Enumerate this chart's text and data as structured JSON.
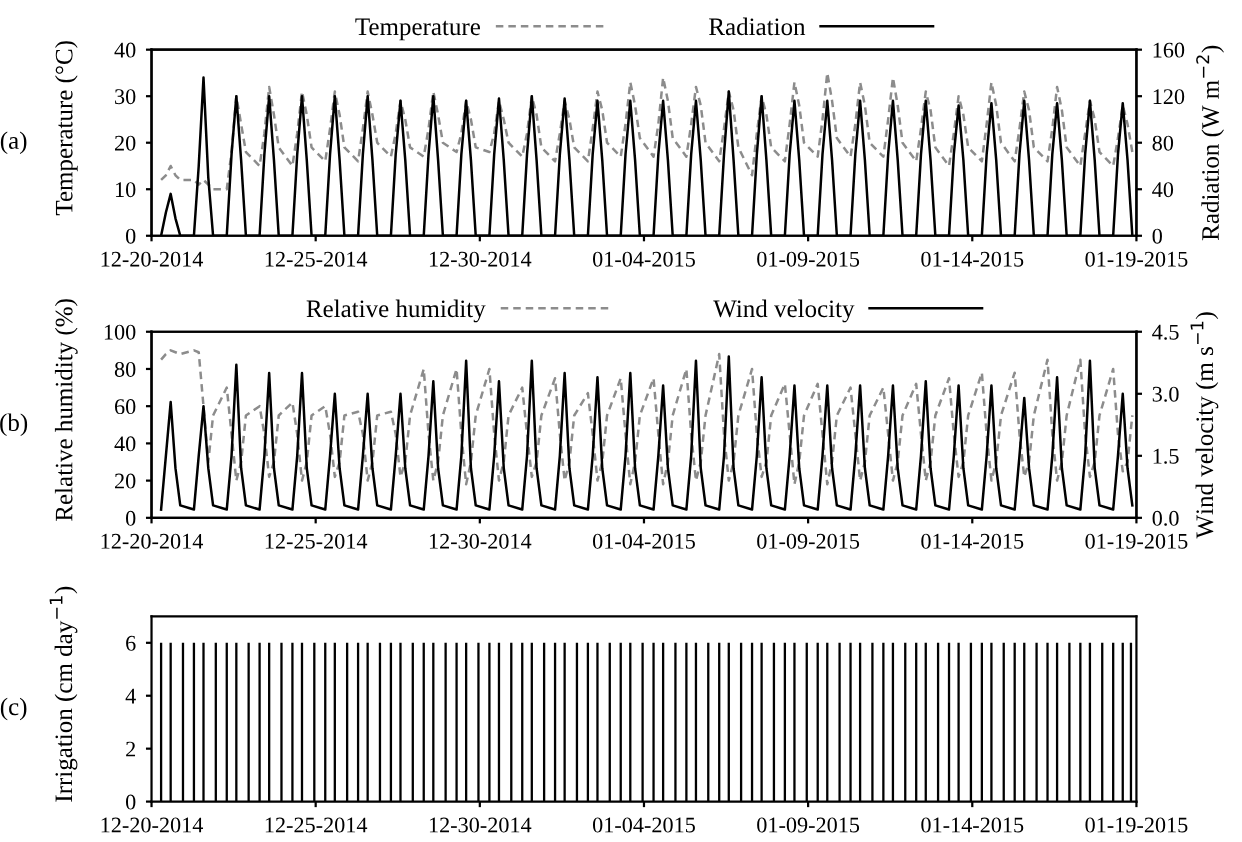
{
  "chart_data": [
    {
      "type": "line",
      "ylabel": "Temperature (°C)",
      "y2label": "Radiation (W m$^{−2}$)",
      "annotations": [
        "(a)"
      ],
      "legend": "top",
      "grid": false,
      "marker": "none",
      "xlim": [
        "2014-12-20",
        "2015-01-19"
      ],
      "xticks": [
        {
          "value": "2014-12-20",
          "label": "12-20-2014"
        },
        {
          "value": "2014-12-25",
          "label": "12-25-2014"
        },
        {
          "value": "2014-12-30",
          "label": "12-30-2014"
        },
        {
          "value": "2015-01-04",
          "label": "01-04-2015"
        },
        {
          "value": "2015-01-09",
          "label": "01-09-2015"
        },
        {
          "value": "2015-01-14",
          "label": "01-14-2015"
        },
        {
          "value": "2015-01-19",
          "label": "01-19-2015"
        }
      ],
      "ylim": [
        0,
        40
      ],
      "yticks": [
        0,
        10,
        20,
        30,
        40
      ],
      "y2lim": [
        0,
        160
      ],
      "y2ticks": [
        0,
        40,
        80,
        120,
        160
      ],
      "x": [
        "2014-12-20T07:00",
        "2014-12-20T10:30",
        "2014-12-20T14:00",
        "2014-12-20T17:30",
        "2014-12-20T21:00",
        "2014-12-21T07:00",
        "2014-12-21T10:30",
        "2014-12-21T14:00",
        "2014-12-21T17:30",
        "2014-12-21T21:00",
        "2014-12-22T07:00",
        "2014-12-22T10:30",
        "2014-12-22T14:00",
        "2014-12-22T17:30",
        "2014-12-22T21:00",
        "2014-12-23T07:00",
        "2014-12-23T10:30",
        "2014-12-23T14:00",
        "2014-12-23T17:30",
        "2014-12-23T21:00",
        "2014-12-24T07:00",
        "2014-12-24T10:30",
        "2014-12-24T14:00",
        "2014-12-24T17:30",
        "2014-12-24T21:00",
        "2014-12-25T07:00",
        "2014-12-25T10:30",
        "2014-12-25T14:00",
        "2014-12-25T17:30",
        "2014-12-25T21:00",
        "2014-12-26T07:00",
        "2014-12-26T10:30",
        "2014-12-26T14:00",
        "2014-12-26T17:30",
        "2014-12-26T21:00",
        "2014-12-27T07:00",
        "2014-12-27T10:30",
        "2014-12-27T14:00",
        "2014-12-27T17:30",
        "2014-12-27T21:00",
        "2014-12-28T07:00",
        "2014-12-28T10:30",
        "2014-12-28T14:00",
        "2014-12-28T17:30",
        "2014-12-28T21:00",
        "2014-12-29T07:00",
        "2014-12-29T10:30",
        "2014-12-29T14:00",
        "2014-12-29T17:30",
        "2014-12-29T21:00",
        "2014-12-30T07:00",
        "2014-12-30T10:30",
        "2014-12-30T14:00",
        "2014-12-30T17:30",
        "2014-12-30T21:00",
        "2014-12-31T07:00",
        "2014-12-31T10:30",
        "2014-12-31T14:00",
        "2014-12-31T17:30",
        "2014-12-31T21:00",
        "2015-01-01T07:00",
        "2015-01-01T10:30",
        "2015-01-01T14:00",
        "2015-01-01T17:30",
        "2015-01-01T21:00",
        "2015-01-02T07:00",
        "2015-01-02T10:30",
        "2015-01-02T14:00",
        "2015-01-02T17:30",
        "2015-01-02T21:00",
        "2015-01-03T07:00",
        "2015-01-03T10:30",
        "2015-01-03T14:00",
        "2015-01-03T17:30",
        "2015-01-03T21:00",
        "2015-01-04T07:00",
        "2015-01-04T10:30",
        "2015-01-04T14:00",
        "2015-01-04T17:30",
        "2015-01-04T21:00",
        "2015-01-05T07:00",
        "2015-01-05T10:30",
        "2015-01-05T14:00",
        "2015-01-05T17:30",
        "2015-01-05T21:00",
        "2015-01-06T07:00",
        "2015-01-06T10:30",
        "2015-01-06T14:00",
        "2015-01-06T17:30",
        "2015-01-06T21:00",
        "2015-01-07T07:00",
        "2015-01-07T10:30",
        "2015-01-07T14:00",
        "2015-01-07T17:30",
        "2015-01-07T21:00",
        "2015-01-08T07:00",
        "2015-01-08T10:30",
        "2015-01-08T14:00",
        "2015-01-08T17:30",
        "2015-01-08T21:00",
        "2015-01-09T07:00",
        "2015-01-09T10:30",
        "2015-01-09T14:00",
        "2015-01-09T17:30",
        "2015-01-09T21:00",
        "2015-01-10T07:00",
        "2015-01-10T10:30",
        "2015-01-10T14:00",
        "2015-01-10T17:30",
        "2015-01-10T21:00",
        "2015-01-11T07:00",
        "2015-01-11T10:30",
        "2015-01-11T14:00",
        "2015-01-11T17:30",
        "2015-01-11T21:00",
        "2015-01-12T07:00",
        "2015-01-12T10:30",
        "2015-01-12T14:00",
        "2015-01-12T17:30",
        "2015-01-12T21:00",
        "2015-01-13T07:00",
        "2015-01-13T10:30",
        "2015-01-13T14:00",
        "2015-01-13T17:30",
        "2015-01-13T21:00",
        "2015-01-14T07:00",
        "2015-01-14T10:30",
        "2015-01-14T14:00",
        "2015-01-14T17:30",
        "2015-01-14T21:00",
        "2015-01-15T07:00",
        "2015-01-15T10:30",
        "2015-01-15T14:00",
        "2015-01-15T17:30",
        "2015-01-15T21:00",
        "2015-01-16T07:00",
        "2015-01-16T10:30",
        "2015-01-16T14:00",
        "2015-01-16T17:30",
        "2015-01-16T21:00",
        "2015-01-17T07:00",
        "2015-01-17T10:30",
        "2015-01-17T14:00",
        "2015-01-17T17:30",
        "2015-01-17T21:00",
        "2015-01-18T07:00",
        "2015-01-18T10:30",
        "2015-01-18T14:00",
        "2015-01-18T17:30",
        "2015-01-18T21:00"
      ],
      "series": [
        {
          "name": "Temperature",
          "color": "#8c8c8c",
          "line_style": "dashed",
          "values": [
            12,
            13,
            15,
            13,
            12,
            12,
            11,
            12,
            11,
            10,
            10,
            18,
            30,
            24,
            18,
            15,
            22,
            32,
            26,
            19,
            15,
            22,
            31,
            26,
            19,
            16,
            23,
            31,
            26,
            19,
            16,
            23,
            31,
            26,
            20,
            17,
            22,
            29,
            25,
            19,
            17,
            23,
            31,
            26,
            20,
            18,
            22,
            29,
            25,
            19,
            18,
            22,
            29,
            25,
            20,
            17,
            22,
            30,
            26,
            19,
            16,
            22,
            29,
            25,
            19,
            16,
            23,
            31,
            27,
            20,
            17,
            24,
            33,
            28,
            21,
            17,
            24,
            34,
            29,
            21,
            17,
            24,
            32,
            28,
            20,
            16,
            23,
            31,
            27,
            19,
            13,
            22,
            30,
            26,
            19,
            16,
            24,
            33,
            28,
            20,
            17,
            25,
            35,
            29,
            21,
            17,
            24,
            33,
            28,
            20,
            17,
            25,
            34,
            28,
            20,
            16,
            23,
            31,
            27,
            19,
            15,
            22,
            30,
            26,
            19,
            16,
            24,
            33,
            28,
            20,
            16,
            23,
            31,
            27,
            19,
            16,
            23,
            32,
            27,
            19,
            15,
            22,
            29,
            25,
            18,
            15,
            21,
            28,
            24,
            18
          ]
        },
        {
          "name": "Radiation",
          "color": "#000000",
          "line_style": "solid",
          "axis": "y2",
          "values": [
            0,
            20,
            36,
            15,
            0,
            0,
            60,
            136,
            50,
            0,
            0,
            70,
            120,
            65,
            0,
            0,
            70,
            120,
            65,
            0,
            0,
            70,
            120,
            65,
            0,
            0,
            70,
            120,
            65,
            0,
            0,
            70,
            120,
            65,
            0,
            0,
            70,
            116,
            65,
            0,
            0,
            70,
            120,
            65,
            0,
            0,
            70,
            116,
            65,
            0,
            0,
            70,
            118,
            65,
            0,
            0,
            70,
            120,
            65,
            0,
            0,
            70,
            118,
            65,
            0,
            0,
            70,
            116,
            65,
            0,
            0,
            70,
            116,
            65,
            0,
            0,
            70,
            116,
            65,
            0,
            0,
            70,
            116,
            65,
            0,
            0,
            70,
            124,
            65,
            0,
            0,
            70,
            120,
            65,
            0,
            0,
            70,
            116,
            65,
            0,
            0,
            70,
            116,
            65,
            0,
            0,
            70,
            116,
            65,
            0,
            0,
            70,
            116,
            65,
            0,
            0,
            70,
            116,
            65,
            0,
            0,
            70,
            112,
            65,
            0,
            0,
            70,
            114,
            65,
            0,
            0,
            70,
            116,
            65,
            0,
            0,
            70,
            114,
            65,
            0,
            0,
            70,
            116,
            65,
            0,
            0,
            70,
            114,
            65,
            0
          ]
        }
      ]
    },
    {
      "type": "line",
      "ylabel": "Relative humidity (%)",
      "y2label": "Wind velocity (m s$^{−1}$)",
      "annotations": [
        "(b)"
      ],
      "legend": "top",
      "grid": false,
      "marker": "none",
      "xlim": [
        "2014-12-20",
        "2015-01-19"
      ],
      "xticks": [
        {
          "value": "2014-12-20",
          "label": "12-20-2014"
        },
        {
          "value": "2014-12-25",
          "label": "12-25-2014"
        },
        {
          "value": "2014-12-30",
          "label": "12-30-2014"
        },
        {
          "value": "2015-01-04",
          "label": "01-04-2015"
        },
        {
          "value": "2015-01-09",
          "label": "01-09-2015"
        },
        {
          "value": "2015-01-14",
          "label": "01-14-2015"
        },
        {
          "value": "2015-01-19",
          "label": "01-19-2015"
        }
      ],
      "ylim": [
        0,
        100
      ],
      "yticks": [
        0,
        20,
        40,
        60,
        80,
        100
      ],
      "y2lim": [
        0,
        4.5
      ],
      "y2ticks": [
        {
          "value": 0,
          "label": "0.0"
        },
        {
          "value": 1.5,
          "label": "1.5"
        },
        {
          "value": 3,
          "label": "3.0"
        },
        {
          "value": 4.5,
          "label": "4.5"
        }
      ],
      "x": [
        "2014-12-20T07:00",
        "2014-12-20T10:30",
        "2014-12-20T14:00",
        "2014-12-20T17:30",
        "2014-12-20T21:00",
        "2014-12-21T07:00",
        "2014-12-21T10:30",
        "2014-12-21T14:00",
        "2014-12-21T17:30",
        "2014-12-21T21:00",
        "2014-12-22T07:00",
        "2014-12-22T10:30",
        "2014-12-22T14:00",
        "2014-12-22T17:30",
        "2014-12-22T21:00",
        "2014-12-23T07:00",
        "2014-12-23T10:30",
        "2014-12-23T14:00",
        "2014-12-23T17:30",
        "2014-12-23T21:00",
        "2014-12-24T07:00",
        "2014-12-24T10:30",
        "2014-12-24T14:00",
        "2014-12-24T17:30",
        "2014-12-24T21:00",
        "2014-12-25T07:00",
        "2014-12-25T10:30",
        "2014-12-25T14:00",
        "2014-12-25T17:30",
        "2014-12-25T21:00",
        "2014-12-26T07:00",
        "2014-12-26T10:30",
        "2014-12-26T14:00",
        "2014-12-26T17:30",
        "2014-12-26T21:00",
        "2014-12-27T07:00",
        "2014-12-27T10:30",
        "2014-12-27T14:00",
        "2014-12-27T17:30",
        "2014-12-27T21:00",
        "2014-12-28T07:00",
        "2014-12-28T10:30",
        "2014-12-28T14:00",
        "2014-12-28T17:30",
        "2014-12-28T21:00",
        "2014-12-29T07:00",
        "2014-12-29T10:30",
        "2014-12-29T14:00",
        "2014-12-29T17:30",
        "2014-12-29T21:00",
        "2014-12-30T07:00",
        "2014-12-30T10:30",
        "2014-12-30T14:00",
        "2014-12-30T17:30",
        "2014-12-30T21:00",
        "2014-12-31T07:00",
        "2014-12-31T10:30",
        "2014-12-31T14:00",
        "2014-12-31T17:30",
        "2014-12-31T21:00",
        "2015-01-01T07:00",
        "2015-01-01T10:30",
        "2015-01-01T14:00",
        "2015-01-01T17:30",
        "2015-01-01T21:00",
        "2015-01-02T07:00",
        "2015-01-02T10:30",
        "2015-01-02T14:00",
        "2015-01-02T17:30",
        "2015-01-02T21:00",
        "2015-01-03T07:00",
        "2015-01-03T10:30",
        "2015-01-03T14:00",
        "2015-01-03T17:30",
        "2015-01-03T21:00",
        "2015-01-04T07:00",
        "2015-01-04T10:30",
        "2015-01-04T14:00",
        "2015-01-04T17:30",
        "2015-01-04T21:00",
        "2015-01-05T07:00",
        "2015-01-05T10:30",
        "2015-01-05T14:00",
        "2015-01-05T17:30",
        "2015-01-05T21:00",
        "2015-01-06T07:00",
        "2015-01-06T10:30",
        "2015-01-06T14:00",
        "2015-01-06T17:30",
        "2015-01-06T21:00",
        "2015-01-07T07:00",
        "2015-01-07T10:30",
        "2015-01-07T14:00",
        "2015-01-07T17:30",
        "2015-01-07T21:00",
        "2015-01-08T07:00",
        "2015-01-08T10:30",
        "2015-01-08T14:00",
        "2015-01-08T17:30",
        "2015-01-08T21:00",
        "2015-01-09T07:00",
        "2015-01-09T10:30",
        "2015-01-09T14:00",
        "2015-01-09T17:30",
        "2015-01-09T21:00",
        "2015-01-10T07:00",
        "2015-01-10T10:30",
        "2015-01-10T14:00",
        "2015-01-10T17:30",
        "2015-01-10T21:00",
        "2015-01-11T07:00",
        "2015-01-11T10:30",
        "2015-01-11T14:00",
        "2015-01-11T17:30",
        "2015-01-11T21:00",
        "2015-01-12T07:00",
        "2015-01-12T10:30",
        "2015-01-12T14:00",
        "2015-01-12T17:30",
        "2015-01-12T21:00",
        "2015-01-13T07:00",
        "2015-01-13T10:30",
        "2015-01-13T14:00",
        "2015-01-13T17:30",
        "2015-01-13T21:00",
        "2015-01-14T07:00",
        "2015-01-14T10:30",
        "2015-01-14T14:00",
        "2015-01-14T17:30",
        "2015-01-14T21:00",
        "2015-01-15T07:00",
        "2015-01-15T10:30",
        "2015-01-15T14:00",
        "2015-01-15T17:30",
        "2015-01-15T21:00",
        "2015-01-16T07:00",
        "2015-01-16T10:30",
        "2015-01-16T14:00",
        "2015-01-16T17:30",
        "2015-01-16T21:00",
        "2015-01-17T07:00",
        "2015-01-17T10:30",
        "2015-01-17T14:00",
        "2015-01-17T17:30",
        "2015-01-17T21:00",
        "2015-01-18T07:00",
        "2015-01-18T10:30",
        "2015-01-18T14:00",
        "2015-01-18T17:30",
        "2015-01-18T21:00"
      ],
      "series": [
        {
          "name": "Relative humidity",
          "color": "#8c8c8c",
          "line_style": "dashed",
          "values": [
            85,
            88,
            90,
            89,
            88,
            90,
            89,
            60,
            30,
            55,
            70,
            45,
            20,
            30,
            55,
            60,
            45,
            22,
            30,
            55,
            62,
            45,
            20,
            30,
            55,
            60,
            45,
            22,
            30,
            55,
            57,
            45,
            20,
            30,
            55,
            57,
            45,
            22,
            30,
            55,
            80,
            45,
            20,
            30,
            55,
            80,
            45,
            18,
            30,
            55,
            80,
            45,
            20,
            30,
            55,
            70,
            45,
            22,
            30,
            55,
            75,
            45,
            20,
            30,
            55,
            67,
            45,
            20,
            30,
            55,
            75,
            45,
            18,
            30,
            55,
            75,
            45,
            18,
            30,
            55,
            80,
            45,
            20,
            30,
            55,
            88,
            45,
            20,
            30,
            55,
            80,
            45,
            22,
            30,
            55,
            72,
            45,
            18,
            30,
            55,
            72,
            45,
            18,
            30,
            55,
            70,
            45,
            20,
            30,
            55,
            70,
            45,
            20,
            30,
            55,
            72,
            45,
            20,
            30,
            55,
            75,
            45,
            22,
            30,
            55,
            78,
            45,
            20,
            30,
            55,
            78,
            45,
            22,
            30,
            55,
            85,
            45,
            20,
            30,
            55,
            85,
            45,
            22,
            30,
            55,
            80,
            45,
            25,
            30,
            55
          ]
        },
        {
          "name": "Wind velocity",
          "color": "#000000",
          "line_style": "solid",
          "axis": "y2",
          "values": [
            0.2,
            1.5,
            2.8,
            1.2,
            0.3,
            0.2,
            1.5,
            2.7,
            1.2,
            0.3,
            0.2,
            1.5,
            3.7,
            1.2,
            0.3,
            0.2,
            1.5,
            3.5,
            1.2,
            0.3,
            0.2,
            1.5,
            3.5,
            1.2,
            0.3,
            0.2,
            1.5,
            3.0,
            1.2,
            0.3,
            0.2,
            1.5,
            3.0,
            1.2,
            0.3,
            0.2,
            1.5,
            3.0,
            1.2,
            0.3,
            0.2,
            1.5,
            3.3,
            1.2,
            0.3,
            0.2,
            1.5,
            3.8,
            1.2,
            0.3,
            0.2,
            1.5,
            3.3,
            1.2,
            0.3,
            0.2,
            1.5,
            3.8,
            1.2,
            0.3,
            0.2,
            1.5,
            3.5,
            1.2,
            0.3,
            0.2,
            1.5,
            3.4,
            1.2,
            0.3,
            0.2,
            1.5,
            3.5,
            1.2,
            0.3,
            0.2,
            1.5,
            3.2,
            1.2,
            0.3,
            0.2,
            1.5,
            3.8,
            1.2,
            0.3,
            0.2,
            1.5,
            3.9,
            1.2,
            0.3,
            0.2,
            1.5,
            3.4,
            1.2,
            0.3,
            0.2,
            1.5,
            3.2,
            1.2,
            0.3,
            0.2,
            1.5,
            3.2,
            1.2,
            0.3,
            0.2,
            1.5,
            3.2,
            1.2,
            0.3,
            0.2,
            1.5,
            3.2,
            1.2,
            0.3,
            0.2,
            1.5,
            3.3,
            1.2,
            0.3,
            0.2,
            1.5,
            3.2,
            1.2,
            0.3,
            0.2,
            1.5,
            3.2,
            1.2,
            0.3,
            0.2,
            1.5,
            2.9,
            1.2,
            0.3,
            0.2,
            1.5,
            3.4,
            1.2,
            0.3,
            0.2,
            1.5,
            3.8,
            1.2,
            0.3,
            0.2,
            1.5,
            3.0,
            1.2,
            0.3
          ]
        }
      ]
    },
    {
      "type": "bar",
      "ylabel": "Irrigation (cm day$^{−1}$)",
      "annotations": [
        "(c)"
      ],
      "grid": false,
      "xlim": [
        "2014-12-20",
        "2015-01-19"
      ],
      "xticks": [
        {
          "value": "2014-12-20",
          "label": "12-20-2014"
        },
        {
          "value": "2014-12-25",
          "label": "12-25-2014"
        },
        {
          "value": "2014-12-30",
          "label": "12-30-2014"
        },
        {
          "value": "2015-01-04",
          "label": "01-04-2015"
        },
        {
          "value": "2015-01-09",
          "label": "01-09-2015"
        },
        {
          "value": "2015-01-14",
          "label": "01-14-2015"
        },
        {
          "value": "2015-01-19",
          "label": "01-19-2015"
        }
      ],
      "ylim": [
        0,
        7
      ],
      "yticks": [
        0,
        2,
        4,
        6
      ],
      "x": [
        "2014-12-20T07:00",
        "2014-12-20T14:00",
        "2014-12-20T23:00",
        "2014-12-21T07:00",
        "2014-12-21T14:00",
        "2014-12-21T23:00",
        "2014-12-22T07:00",
        "2014-12-22T14:00",
        "2014-12-22T23:00",
        "2014-12-23T07:00",
        "2014-12-23T14:00",
        "2014-12-23T23:00",
        "2014-12-24T07:00",
        "2014-12-24T14:00",
        "2014-12-24T23:00",
        "2014-12-25T07:00",
        "2014-12-25T14:00",
        "2014-12-25T23:00",
        "2014-12-26T07:00",
        "2014-12-26T14:00",
        "2014-12-26T23:00",
        "2014-12-27T07:00",
        "2014-12-27T14:00",
        "2014-12-27T23:00",
        "2014-12-28T07:00",
        "2014-12-28T14:00",
        "2014-12-28T23:00",
        "2014-12-29T07:00",
        "2014-12-29T14:00",
        "2014-12-29T23:00",
        "2014-12-30T07:00",
        "2014-12-30T14:00",
        "2014-12-30T23:00",
        "2014-12-31T07:00",
        "2014-12-31T14:00",
        "2014-12-31T23:00",
        "2015-01-01T07:00",
        "2015-01-01T14:00",
        "2015-01-01T23:00",
        "2015-01-02T07:00",
        "2015-01-02T14:00",
        "2015-01-02T23:00",
        "2015-01-03T07:00",
        "2015-01-03T14:00",
        "2015-01-03T23:00",
        "2015-01-04T07:00",
        "2015-01-04T14:00",
        "2015-01-04T23:00",
        "2015-01-05T07:00",
        "2015-01-05T14:00",
        "2015-01-05T23:00",
        "2015-01-06T07:00",
        "2015-01-06T14:00",
        "2015-01-06T23:00",
        "2015-01-07T07:00",
        "2015-01-07T14:00",
        "2015-01-07T23:00",
        "2015-01-08T07:00",
        "2015-01-08T14:00",
        "2015-01-08T23:00",
        "2015-01-09T07:00",
        "2015-01-09T14:00",
        "2015-01-09T23:00",
        "2015-01-10T07:00",
        "2015-01-10T14:00",
        "2015-01-10T23:00",
        "2015-01-11T07:00",
        "2015-01-11T14:00",
        "2015-01-11T23:00",
        "2015-01-12T07:00",
        "2015-01-12T14:00",
        "2015-01-12T23:00",
        "2015-01-13T07:00",
        "2015-01-13T14:00",
        "2015-01-13T23:00",
        "2015-01-14T07:00",
        "2015-01-14T14:00",
        "2015-01-14T23:00",
        "2015-01-15T07:00",
        "2015-01-15T14:00",
        "2015-01-15T23:00",
        "2015-01-16T07:00",
        "2015-01-16T14:00",
        "2015-01-16T23:00",
        "2015-01-17T07:00",
        "2015-01-17T14:00",
        "2015-01-17T23:00",
        "2015-01-18T07:00",
        "2015-01-18T14:00",
        "2015-01-18T20:00"
      ],
      "series": [
        {
          "color": "#000000",
          "values": [
            6,
            6,
            6,
            6,
            6,
            6,
            6,
            6,
            6,
            6,
            6,
            6,
            6,
            6,
            6,
            6,
            6,
            6,
            6,
            6,
            6,
            6,
            6,
            6,
            6,
            6,
            6,
            6,
            6,
            6,
            6,
            6,
            6,
            6,
            6,
            6,
            6,
            6,
            6,
            6,
            6,
            6,
            6,
            6,
            6,
            6,
            6,
            6,
            6,
            6,
            6,
            6,
            6,
            6,
            6,
            6,
            6,
            6,
            6,
            6,
            6,
            6,
            6,
            6,
            6,
            6,
            6,
            6,
            6,
            6,
            6,
            6,
            6,
            6,
            6,
            6,
            6,
            6,
            6,
            6,
            6,
            6,
            6,
            6,
            6,
            6,
            6,
            6,
            6,
            6
          ]
        }
      ]
    }
  ]
}
